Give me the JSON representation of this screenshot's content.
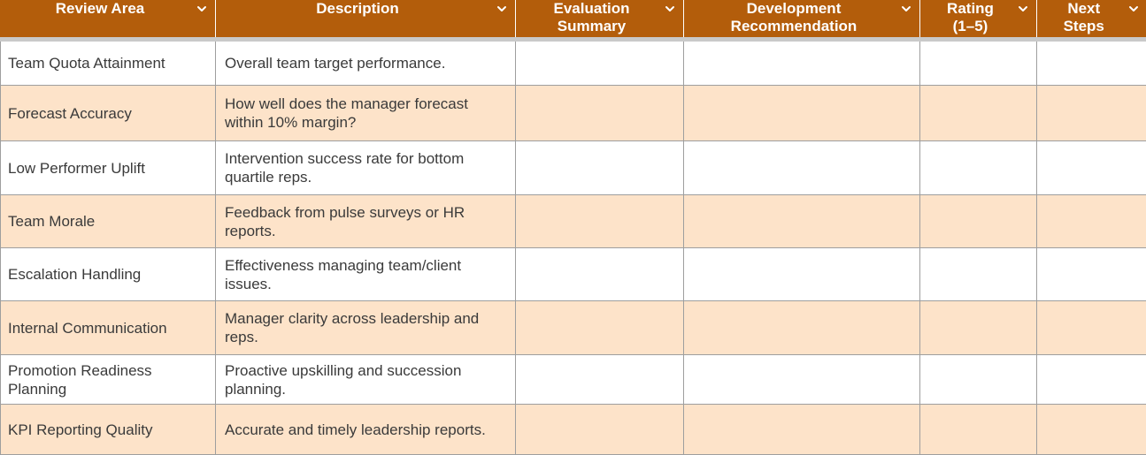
{
  "header": {
    "columns": [
      {
        "label": "Review Area",
        "icon": "chevron-down-icon"
      },
      {
        "label": "Description",
        "icon": "chevron-down-icon"
      },
      {
        "label": "Evaluation\nSummary",
        "icon": "chevron-down-icon"
      },
      {
        "label": "Development\nRecommendation",
        "icon": "chevron-down-icon"
      },
      {
        "label": "Rating\n(1–5)",
        "icon": "chevron-down-icon"
      },
      {
        "label": "Next\nSteps",
        "icon": "chevron-down-icon"
      }
    ]
  },
  "rows": [
    {
      "area": "Team Quota Attainment",
      "description": "Overall team target performance.",
      "summary": "",
      "recommendation": "",
      "rating": "",
      "next_steps": ""
    },
    {
      "area": "Forecast Accuracy",
      "description": "How well does the manager forecast within 10% margin?",
      "summary": "",
      "recommendation": "",
      "rating": "",
      "next_steps": ""
    },
    {
      "area": "Low Performer Uplift",
      "description": "Intervention success rate for bottom quartile reps.",
      "summary": "",
      "recommendation": "",
      "rating": "",
      "next_steps": ""
    },
    {
      "area": "Team Morale",
      "description": "Feedback from pulse surveys or HR reports.",
      "summary": "",
      "recommendation": "",
      "rating": "",
      "next_steps": ""
    },
    {
      "area": "Escalation Handling",
      "description": "Effectiveness managing team/client issues.",
      "summary": "",
      "recommendation": "",
      "rating": "",
      "next_steps": ""
    },
    {
      "area": "Internal Communication",
      "description": "Manager clarity across leadership and reps.",
      "summary": "",
      "recommendation": "",
      "rating": "",
      "next_steps": ""
    },
    {
      "area": "Promotion Readiness Planning",
      "description": "Proactive upskilling and succession planning.",
      "summary": "",
      "recommendation": "",
      "rating": "",
      "next_steps": ""
    },
    {
      "area": "KPI Reporting Quality",
      "description": "Accurate and timely leadership reports.",
      "summary": "",
      "recommendation": "",
      "rating": "",
      "next_steps": ""
    }
  ],
  "colors": {
    "header_bg": "#b35d0b",
    "header_text": "#ffffff",
    "row_alt_bg": "#fde3c9",
    "row_bg": "#ffffff",
    "grid": "#9e9e9e"
  }
}
